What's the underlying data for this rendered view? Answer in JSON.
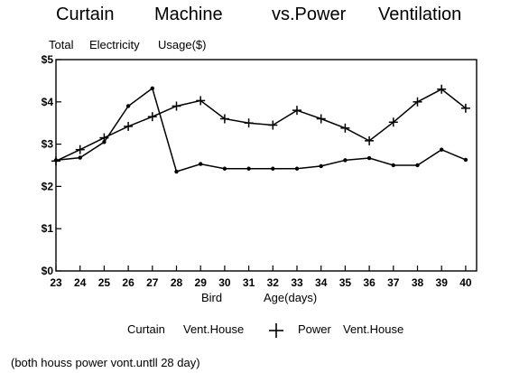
{
  "title_parts": [
    "Curtain",
    "Machine",
    "vs.Power",
    "Ventilation"
  ],
  "ylabel_parts": [
    "Total",
    "Electricity",
    "Usage($)"
  ],
  "xlabel_parts": [
    "Bird",
    "Age(days)"
  ],
  "legend": {
    "curtain_parts": [
      "Curtain",
      "Vent.House"
    ],
    "power_parts": [
      "Power",
      "Vent.House"
    ]
  },
  "note": "(both houss power vont.untll 28 day)",
  "chart_data": {
    "type": "line",
    "title": "Curtain Machine vs.Power Ventilation",
    "xlabel": "Bird Age(days)",
    "ylabel": "Total Electricity Usage($)",
    "x": [
      23,
      24,
      25,
      26,
      27,
      28,
      29,
      30,
      31,
      32,
      33,
      34,
      35,
      36,
      37,
      38,
      39,
      40
    ],
    "x_tick_labels": [
      "23",
      "24",
      "25",
      "26",
      "27",
      "28",
      "29",
      "30",
      "31",
      "32",
      "33",
      "34",
      "35",
      "36",
      "37",
      "38",
      "39",
      "40"
    ],
    "y_ticks": [
      0,
      1,
      2,
      3,
      4,
      5
    ],
    "y_tick_labels": [
      "$0",
      "$1",
      "$2",
      "$3",
      "$4",
      "$5"
    ],
    "ylim": [
      0,
      5
    ],
    "grid": false,
    "series": [
      {
        "name": "Curtain Vent.House",
        "marker": "dot",
        "values": [
          2.62,
          2.68,
          3.05,
          3.9,
          4.32,
          2.35,
          2.53,
          2.42,
          2.42,
          2.42,
          2.42,
          2.48,
          2.62,
          2.67,
          2.5,
          2.5,
          2.87,
          2.63
        ]
      },
      {
        "name": "Power Vent.House",
        "marker": "plus",
        "values": [
          2.6,
          2.87,
          3.15,
          3.42,
          3.65,
          3.9,
          4.03,
          3.6,
          3.5,
          3.45,
          3.8,
          3.6,
          3.38,
          3.08,
          3.52,
          4.0,
          4.3,
          3.85
        ]
      }
    ]
  }
}
